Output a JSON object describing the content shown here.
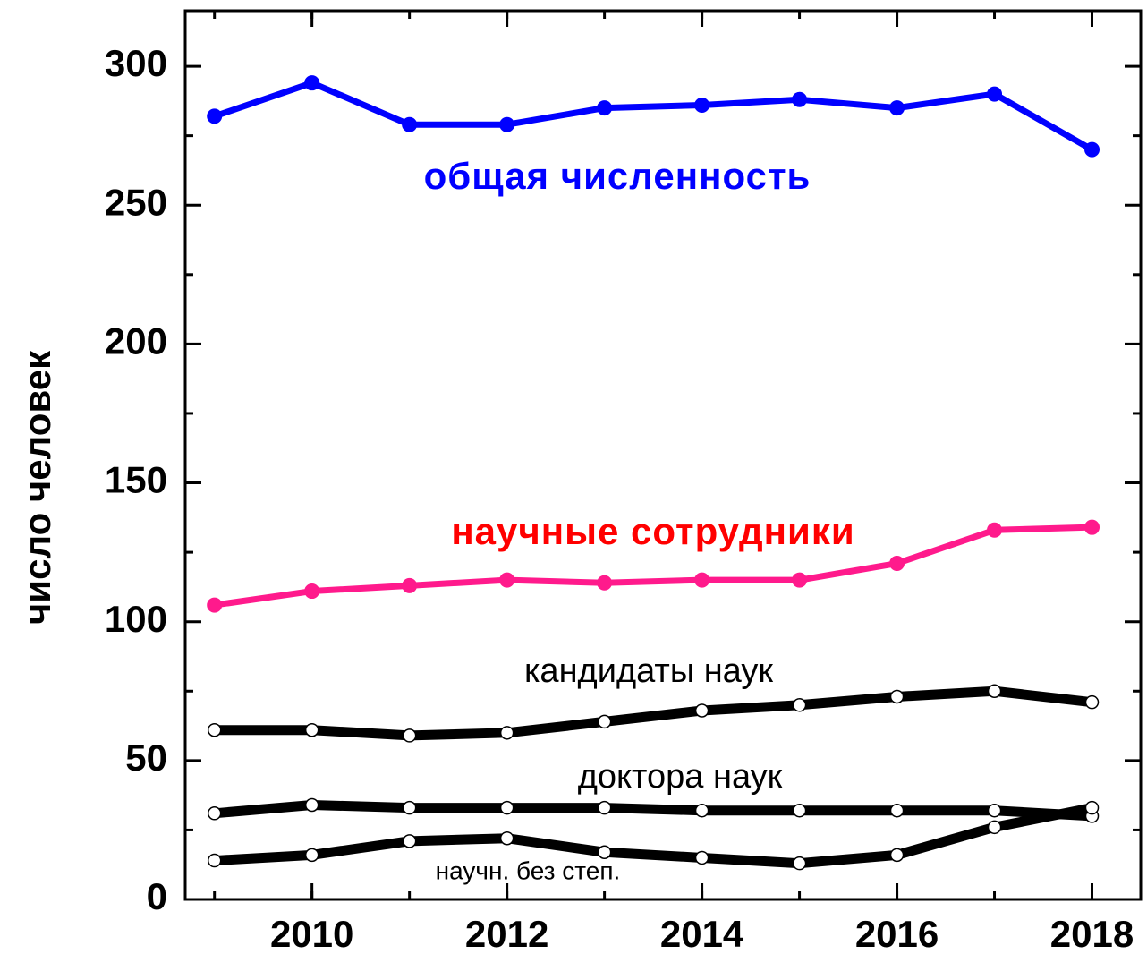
{
  "chart_data": {
    "type": "line",
    "ylabel": "число человек",
    "x": [
      2009,
      2010,
      2011,
      2012,
      2013,
      2014,
      2015,
      2016,
      2017,
      2018
    ],
    "series": [
      {
        "name": "общая численность",
        "color": "#0000ff",
        "label_color": "#0000ff",
        "marker": "filled",
        "values": [
          282,
          294,
          279,
          279,
          285,
          286,
          288,
          285,
          290,
          270
        ]
      },
      {
        "name": "научные сотрудники",
        "color": "#ff1a8c",
        "label_color": "#ff0000",
        "marker": "filled",
        "values": [
          106,
          111,
          113,
          115,
          114,
          115,
          115,
          121,
          133,
          134
        ]
      },
      {
        "name": "кандидаты наук",
        "color": "#000000",
        "label_color": "#000000",
        "marker": "open",
        "values": [
          61,
          61,
          59,
          60,
          64,
          68,
          70,
          73,
          75,
          71
        ]
      },
      {
        "name": "доктора наук",
        "color": "#000000",
        "label_color": "#000000",
        "marker": "open",
        "values": [
          31,
          34,
          33,
          33,
          33,
          32,
          32,
          32,
          32,
          30
        ]
      },
      {
        "name": "научн. без степ.",
        "color": "#000000",
        "label_color": "#000000",
        "marker": "open",
        "values": [
          14,
          16,
          21,
          22,
          17,
          15,
          13,
          16,
          26,
          33
        ]
      }
    ],
    "xlim": [
      2008.7,
      2018.5
    ],
    "xticks": [
      2010,
      2012,
      2014,
      2016,
      2018
    ],
    "ylim": [
      0,
      320
    ],
    "yticks": [
      0,
      50,
      100,
      150,
      200,
      250,
      300
    ]
  }
}
